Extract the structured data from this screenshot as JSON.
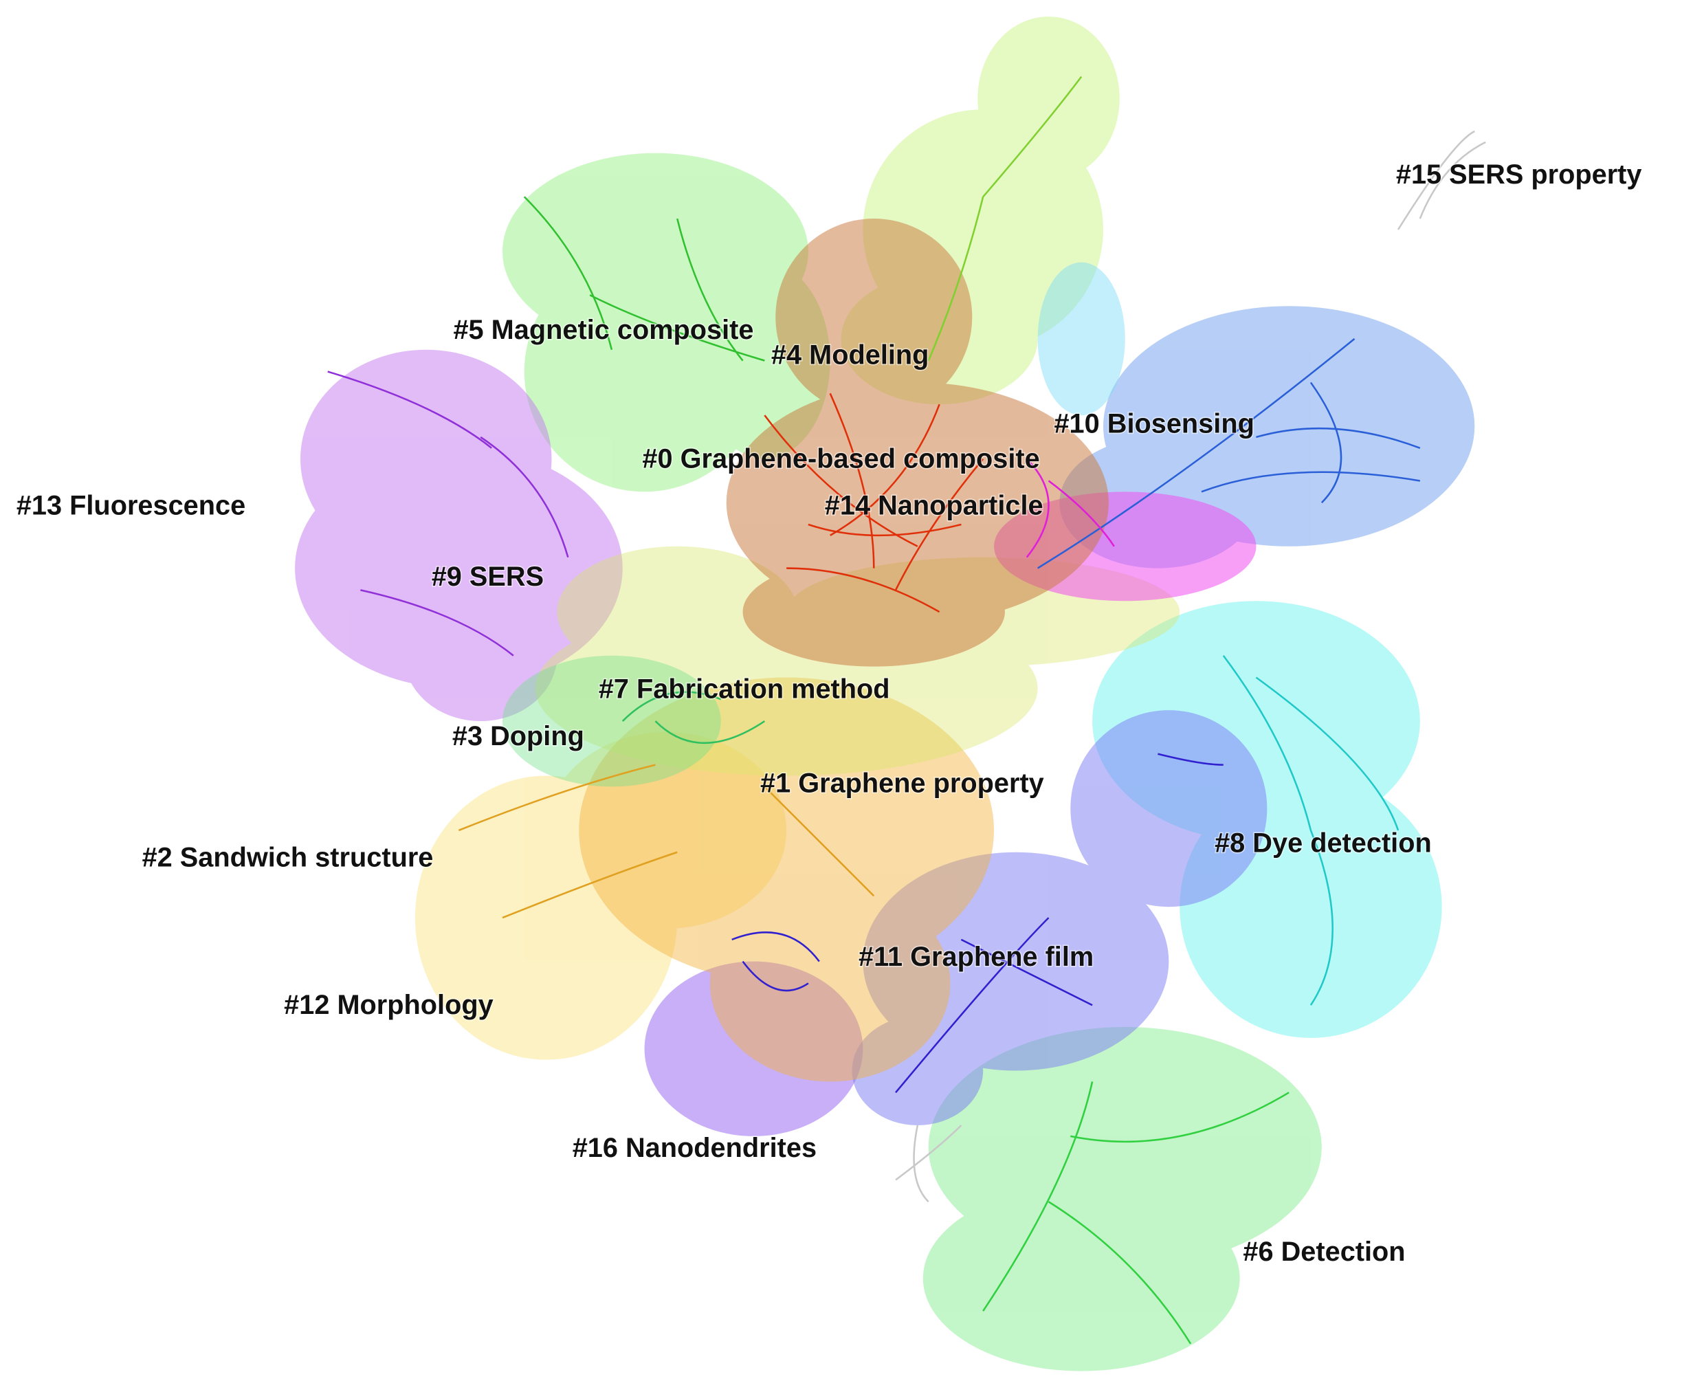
{
  "clusters": [
    "#0 Graphene-based composite",
    "#1 Graphene property",
    "#2 Sandwich structure",
    "#3 Doping",
    "#4 Modeling",
    "#5 Magnetic composite",
    "#6 Detection",
    "#7 Fabrication method",
    "#8 Dye detection",
    "#9 SERS",
    "#10 Biosensing",
    "#11 Graphene film",
    "#12 Morphology",
    "#13 Fluorescence",
    "#14 Nanoparticle",
    "#15 SERS property",
    "#16 Nanodendrites"
  ]
}
